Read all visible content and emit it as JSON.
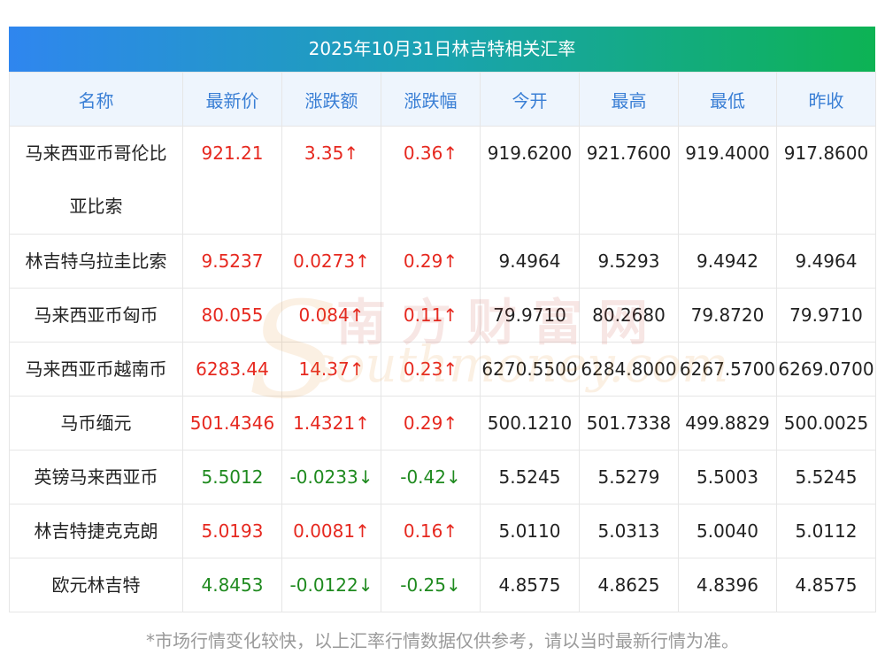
{
  "title": "2025年10月31日林吉特相关汇率",
  "headers": [
    "名称",
    "最新价",
    "涨跌额",
    "涨跌幅",
    "今开",
    "最高",
    "最低",
    "昨收"
  ],
  "rows": [
    {
      "name": "马来西亚币哥伦比亚比索",
      "latest": "921.21",
      "change": "3.35↑",
      "pct": "0.36↑",
      "open": "919.6200",
      "high": "921.7600",
      "low": "919.4000",
      "prev": "917.8600",
      "dir": "up"
    },
    {
      "name": "林吉特乌拉圭比索",
      "latest": "9.5237",
      "change": "0.0273↑",
      "pct": "0.29↑",
      "open": "9.4964",
      "high": "9.5293",
      "low": "9.4942",
      "prev": "9.4964",
      "dir": "up"
    },
    {
      "name": "马来西亚币匈币",
      "latest": "80.055",
      "change": "0.084↑",
      "pct": "0.11↑",
      "open": "79.9710",
      "high": "80.2680",
      "low": "79.8720",
      "prev": "79.9710",
      "dir": "up"
    },
    {
      "name": "马来西亚币越南币",
      "latest": "6283.44",
      "change": "14.37↑",
      "pct": "0.23↑",
      "open": "6270.5500",
      "high": "6284.8000",
      "low": "6267.5700",
      "prev": "6269.0700",
      "dir": "up"
    },
    {
      "name": "马币缅元",
      "latest": "501.4346",
      "change": "1.4321↑",
      "pct": "0.29↑",
      "open": "500.1210",
      "high": "501.7338",
      "low": "499.8829",
      "prev": "500.0025",
      "dir": "up"
    },
    {
      "name": "英镑马来西亚币",
      "latest": "5.5012",
      "change": "-0.0233↓",
      "pct": "-0.42↓",
      "open": "5.5245",
      "high": "5.5279",
      "low": "5.5003",
      "prev": "5.5245",
      "dir": "down"
    },
    {
      "name": "林吉特捷克克朗",
      "latest": "5.0193",
      "change": "0.0081↑",
      "pct": "0.16↑",
      "open": "5.0110",
      "high": "5.0313",
      "low": "5.0040",
      "prev": "5.0112",
      "dir": "up"
    },
    {
      "name": "欧元林吉特",
      "latest": "4.8453",
      "change": "-0.0122↓",
      "pct": "-0.25↓",
      "open": "4.8575",
      "high": "4.8625",
      "low": "4.8396",
      "prev": "4.8575",
      "dir": "down"
    }
  ],
  "footnote": "*市场行情变化较快，以上汇率行情数据仅供参考，请以当时最新行情为准。",
  "watermark": {
    "cn": "南方财富网",
    "en": "southmoney.com"
  },
  "colors": {
    "up": "#e6281f",
    "down": "#1f8a1f",
    "header_text": "#3a7fd5",
    "title_gradient_start": "#2f86ef",
    "title_gradient_end": "#0db354"
  }
}
